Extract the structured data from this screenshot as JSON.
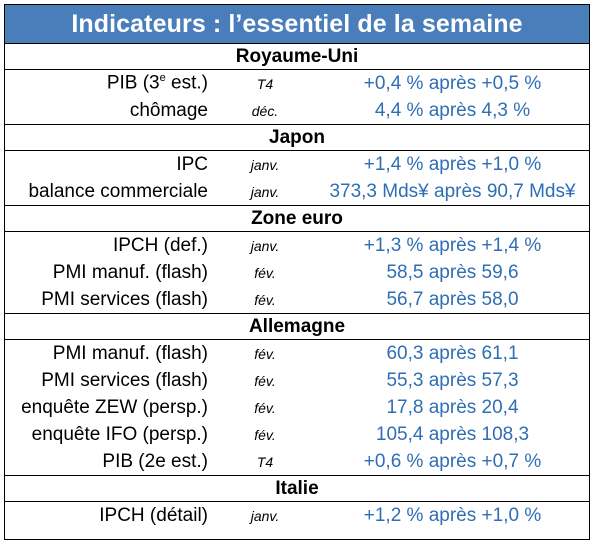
{
  "title": "Indicateurs : l’essentiel de la semaine",
  "sections": [
    {
      "name": "Royaume-Uni",
      "rows": [
        {
          "label_pre": "PIB (3",
          "label_sup": "e",
          "label_post": " est.)",
          "period": "T4",
          "value": "+0,4 % après +0,5 %"
        },
        {
          "label": "chômage",
          "period": "déc.",
          "value": "4,4 % après 4,3 %"
        }
      ]
    },
    {
      "name": "Japon",
      "rows": [
        {
          "label": "IPC",
          "period": "janv.",
          "value": "+1,4 % après +1,0 %"
        },
        {
          "label": "balance commerciale",
          "period": "janv.",
          "value": "373,3 Mds¥ après 90,7 Mds¥"
        }
      ]
    },
    {
      "name": "Zone euro",
      "rows": [
        {
          "label": "IPCH (def.)",
          "period": "janv.",
          "value": "+1,3 % après +1,4 %"
        },
        {
          "label": "PMI manuf. (flash)",
          "period": "fév.",
          "value": "58,5 après 59,6"
        },
        {
          "label": "PMI services (flash)",
          "period": "fév.",
          "value": "56,7 après 58,0"
        }
      ]
    },
    {
      "name": "Allemagne",
      "rows": [
        {
          "label": "PMI manuf. (flash)",
          "period": "fév.",
          "value": "60,3 après 61,1"
        },
        {
          "label": "PMI services (flash)",
          "period": "fév.",
          "value": "55,3 après 57,3"
        },
        {
          "label": "enquête ZEW (persp.)",
          "period": "fév.",
          "value": "17,8 après 20,4"
        },
        {
          "label": "enquête IFO (persp.)",
          "period": "fév.",
          "value": "105,4 après 108,3"
        },
        {
          "label": "PIB (2e est.)",
          "period": "T4",
          "value": "+0,6 % après +0,7 %"
        }
      ]
    },
    {
      "name": "Italie",
      "rows": [
        {
          "label": "IPCH (détail)",
          "period": "janv.",
          "value": "+1,2 % après +1,0 %"
        }
      ]
    }
  ]
}
